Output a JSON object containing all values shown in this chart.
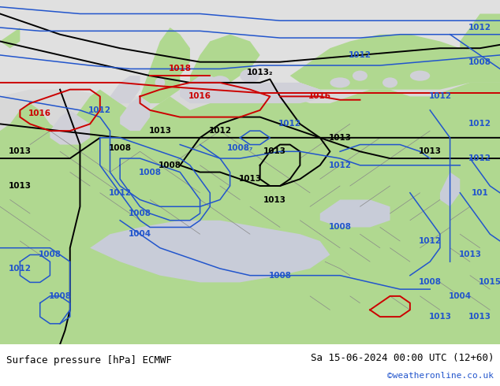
{
  "title_left": "Surface pressure [hPa] ECMWF",
  "title_right": "Sa 15-06-2024 00:00 UTC (12+60)",
  "title_right2": "©weatheronline.co.uk",
  "sea_color": "#d8d8d8",
  "land_color": "#b0d890",
  "arctic_color": "#e0e0e0",
  "border_color": "#888888",
  "footer_color": "#ffffff",
  "black_lw": 1.4,
  "blue_lw": 1.1,
  "red_lw": 1.4,
  "label_fontsize": 7.5
}
